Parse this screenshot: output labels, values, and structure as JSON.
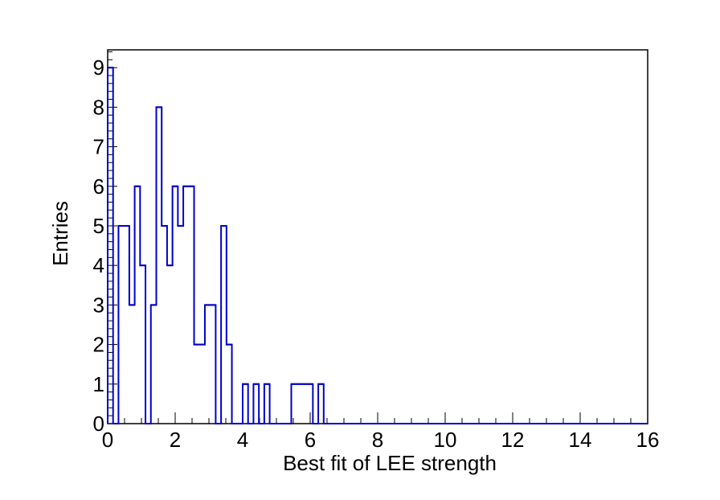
{
  "chart_data": {
    "type": "histogram",
    "title": "",
    "xlabel": "Best fit of LEE strength",
    "ylabel": "Entries",
    "xlim": [
      0,
      16
    ],
    "ylim": [
      0,
      9.45
    ],
    "bin_width": 0.16,
    "x_ticks": [
      "0",
      "2",
      "4",
      "6",
      "8",
      "10",
      "12",
      "14",
      "16"
    ],
    "y_ticks": [
      "0",
      "1",
      "2",
      "3",
      "4",
      "5",
      "6",
      "7",
      "8",
      "9"
    ],
    "line_color": "#0000cc",
    "legend": "none",
    "grid": false,
    "bins": [
      {
        "low": 0.0,
        "high": 0.16,
        "count": 9
      },
      {
        "low": 0.16,
        "high": 0.32,
        "count": 0
      },
      {
        "low": 0.32,
        "high": 0.48,
        "count": 5
      },
      {
        "low": 0.48,
        "high": 0.64,
        "count": 5
      },
      {
        "low": 0.64,
        "high": 0.8,
        "count": 3
      },
      {
        "low": 0.8,
        "high": 0.96,
        "count": 6
      },
      {
        "low": 0.96,
        "high": 1.12,
        "count": 4
      },
      {
        "low": 1.12,
        "high": 1.28,
        "count": 0
      },
      {
        "low": 1.28,
        "high": 1.44,
        "count": 3
      },
      {
        "low": 1.44,
        "high": 1.6,
        "count": 8
      },
      {
        "low": 1.6,
        "high": 1.76,
        "count": 5
      },
      {
        "low": 1.76,
        "high": 1.92,
        "count": 4
      },
      {
        "low": 1.92,
        "high": 2.08,
        "count": 6
      },
      {
        "low": 2.08,
        "high": 2.24,
        "count": 5
      },
      {
        "low": 2.24,
        "high": 2.4,
        "count": 6
      },
      {
        "low": 2.4,
        "high": 2.56,
        "count": 6
      },
      {
        "low": 2.56,
        "high": 2.72,
        "count": 2
      },
      {
        "low": 2.72,
        "high": 2.88,
        "count": 2
      },
      {
        "low": 2.88,
        "high": 3.04,
        "count": 3
      },
      {
        "low": 3.04,
        "high": 3.2,
        "count": 3
      },
      {
        "low": 3.2,
        "high": 3.36,
        "count": 0
      },
      {
        "low": 3.36,
        "high": 3.52,
        "count": 5
      },
      {
        "low": 3.52,
        "high": 3.68,
        "count": 2
      },
      {
        "low": 3.68,
        "high": 3.84,
        "count": 0
      },
      {
        "low": 3.84,
        "high": 4.0,
        "count": 0
      },
      {
        "low": 4.0,
        "high": 4.16,
        "count": 1
      },
      {
        "low": 4.16,
        "high": 4.32,
        "count": 0
      },
      {
        "low": 4.32,
        "high": 4.48,
        "count": 1
      },
      {
        "low": 4.48,
        "high": 4.64,
        "count": 0
      },
      {
        "low": 4.64,
        "high": 4.8,
        "count": 1
      },
      {
        "low": 4.8,
        "high": 4.96,
        "count": 0
      },
      {
        "low": 4.96,
        "high": 5.12,
        "count": 0
      },
      {
        "low": 5.12,
        "high": 5.28,
        "count": 0
      },
      {
        "low": 5.28,
        "high": 5.44,
        "count": 0
      },
      {
        "low": 5.44,
        "high": 5.6,
        "count": 1
      },
      {
        "low": 5.6,
        "high": 5.76,
        "count": 1
      },
      {
        "low": 5.76,
        "high": 5.92,
        "count": 1
      },
      {
        "low": 5.92,
        "high": 6.08,
        "count": 1
      },
      {
        "low": 6.08,
        "high": 6.24,
        "count": 0
      },
      {
        "low": 6.24,
        "high": 6.4,
        "count": 1
      }
    ]
  }
}
